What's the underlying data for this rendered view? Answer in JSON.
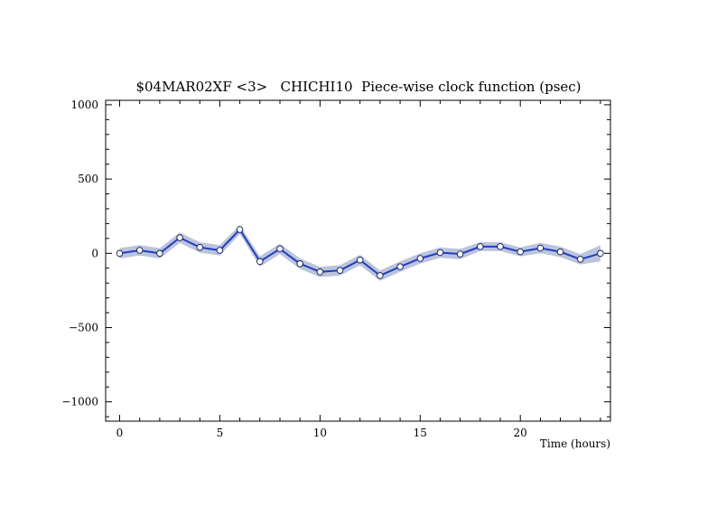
{
  "chart_data": {
    "type": "line",
    "title": "$04MAR02XF <3>   CHICHI10  Piece-wise clock function (psec)",
    "xlabel": "Time (hours)",
    "ylabel": "",
    "xlim": [
      -0.7,
      24.5
    ],
    "ylim": [
      -1130,
      1030
    ],
    "x_ticks": [
      0,
      5,
      10,
      15,
      20
    ],
    "x_tick_labels": [
      "0",
      "5",
      "10",
      "15",
      "20"
    ],
    "y_ticks": [
      1000,
      500,
      0,
      -500,
      -1000
    ],
    "y_tick_labels": [
      "1000",
      "500",
      "0",
      "−500",
      "−1000"
    ],
    "grid": false,
    "series": [
      {
        "x": [
          0,
          1,
          2,
          3,
          4,
          5,
          6,
          7,
          8,
          9,
          10,
          11,
          12,
          13,
          14,
          15,
          16,
          17,
          18,
          19,
          20,
          21,
          22,
          23,
          24
        ],
        "values": [
          0,
          20,
          0,
          105,
          40,
          20,
          160,
          -55,
          30,
          -70,
          -125,
          -115,
          -45,
          -150,
          -90,
          -35,
          5,
          -5,
          45,
          45,
          10,
          35,
          10,
          -40,
          0
        ],
        "uncertainty": [
          35,
          35,
          35,
          35,
          35,
          35,
          30,
          35,
          35,
          35,
          35,
          35,
          35,
          35,
          35,
          35,
          35,
          35,
          30,
          30,
          30,
          35,
          35,
          35,
          55
        ],
        "line_color": "#1f3fbf",
        "band_color": "#bcc3dc",
        "marker_fill": "#ffffff"
      }
    ]
  }
}
